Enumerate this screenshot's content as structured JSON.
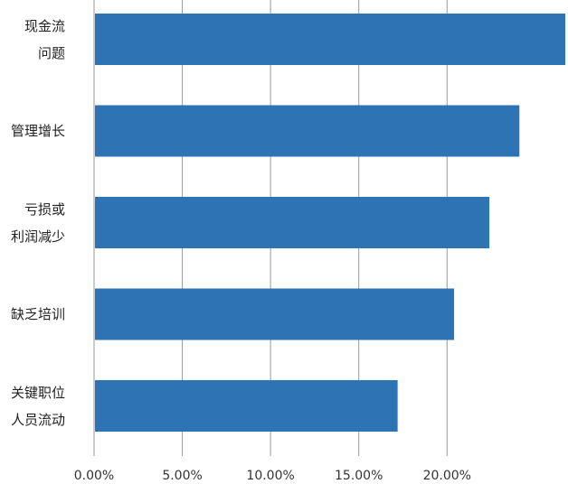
{
  "chart_data": {
    "type": "bar",
    "orientation": "horizontal",
    "categories": [
      "现金流\n问题",
      "管理增长",
      "亏损或\n利润减少",
      "缺乏培训",
      "关键职位\n人员流动"
    ],
    "values": [
      26.7,
      24.1,
      22.4,
      20.4,
      17.2
    ],
    "color": "#2e74b5",
    "xlim": [
      0,
      26.7
    ],
    "xticks": [
      {
        "value": 0,
        "label": "0.00%"
      },
      {
        "value": 5,
        "label": "5.00%"
      },
      {
        "value": 10,
        "label": "10.00%"
      },
      {
        "value": 15,
        "label": "15.00%"
      },
      {
        "value": 20,
        "label": "20.00%"
      }
    ],
    "grid": true
  }
}
